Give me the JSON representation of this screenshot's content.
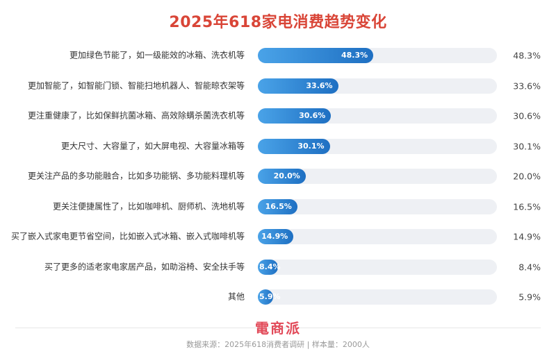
{
  "chart_data": {
    "type": "bar",
    "orientation": "horizontal",
    "title": "2025年618家电消费趋势变化",
    "unit": "%",
    "xlim": [
      0,
      100
    ],
    "categories": [
      "更加绿色节能了，如一级能效的冰箱、洗衣机等",
      "更加智能了，如智能门锁、智能扫地机器人、智能晾衣架等",
      "更注重健康了，比如保鲜抗菌冰箱、高效除螨杀菌洗衣机等",
      "更大尺寸、大容量了，如大屏电视、大容量冰箱等",
      "更关注产品的多功能融合，比如多功能锅、多功能料理机等",
      "更关注便捷属性了，比如咖啡机、厨师机、洗地机等",
      "买了嵌入式家电更节省空间，比如嵌入式冰箱、嵌入式咖啡机等",
      "买了更多的适老家电家居产品，如助浴椅、安全扶手等",
      "其他"
    ],
    "values": [
      48.3,
      33.6,
      30.6,
      30.1,
      20.0,
      16.5,
      14.9,
      8.4,
      5.9
    ],
    "value_labels": [
      "48.3%",
      "33.6%",
      "30.6%",
      "30.1%",
      "20.0%",
      "16.5%",
      "14.9%",
      "8.4%",
      "5.9%"
    ],
    "bar_color_start": "#4aa3e8",
    "bar_color_end": "#1e6fc2",
    "track_color": "#eef0f4",
    "title_color": "#d94537"
  },
  "logo_text": "電商派",
  "footer": "数据来源：2025年618消费者调研 | 样本量：2000人"
}
